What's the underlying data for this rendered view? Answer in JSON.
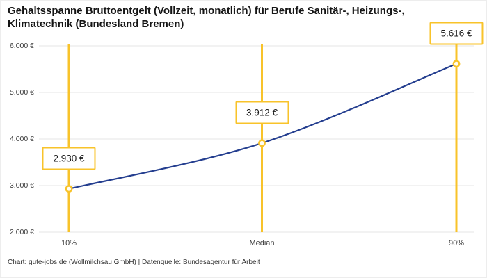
{
  "header": {
    "title": "Gehaltsspanne Bruttoentgelt (Vollzeit, monatlich) für Berufe Sanitär-, Heizungs-,\nKlimatechnik (Bundesland Bremen)"
  },
  "footer": {
    "attribution": "Chart: gute-jobs.de (Wollmilchsau GmbH) | Datenquelle: Bundesagentur für Arbeit"
  },
  "chart_data": {
    "type": "line",
    "title": "Gehaltsspanne Bruttoentgelt (Vollzeit, monatlich) für Berufe Sanitär-, Heizungs-, Klimatechnik (Bundesland Bremen)",
    "categories": [
      "10%",
      "Median",
      "90%"
    ],
    "values": [
      2930,
      3912,
      5616
    ],
    "value_labels": [
      "2.930 €",
      "3.912 €",
      "5.616 €"
    ],
    "xlabel": "",
    "ylabel": "",
    "ylim": [
      2000,
      6000
    ],
    "yticks": [
      2000,
      3000,
      4000,
      5000,
      6000
    ],
    "ytick_labels_top_down": [
      "6.000 €",
      "5.000 €",
      "4.000 €",
      "3.000 €",
      "2.000 €"
    ],
    "grid": true,
    "legend": false,
    "colors": {
      "line": "#243e8f",
      "accent": "#f8c32a",
      "marker_fill": "#fffdf3",
      "grid": "#e4e4e4",
      "text": "#1a1a1a"
    },
    "source": "Chart: gute-jobs.de (Wollmilchsau GmbH) | Datenquelle: Bundesagentur für Arbeit"
  }
}
